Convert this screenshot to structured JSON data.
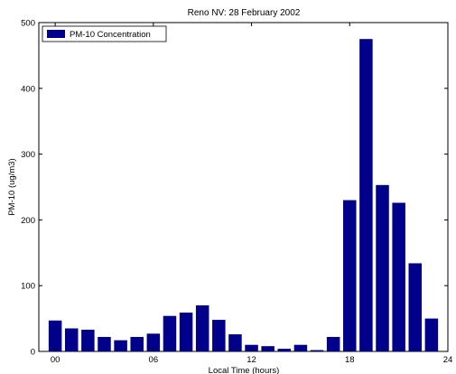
{
  "chart_data": {
    "type": "bar",
    "title": "Reno NV: 28 February 2002",
    "xlabel": "Local Time (hours)",
    "ylabel": "PM-10 (ug/m3)",
    "xlim": [
      -1,
      24
    ],
    "ylim": [
      0,
      500
    ],
    "xticks": [
      0,
      6,
      12,
      18,
      24
    ],
    "xtick_labels": [
      "00",
      "06",
      "12",
      "18",
      "24"
    ],
    "yticks": [
      0,
      100,
      200,
      300,
      400,
      500
    ],
    "legend_position": "top-left",
    "grid": false,
    "bar_color": "#00008b",
    "series": [
      {
        "name": "PM-10 Concentration",
        "x": [
          0,
          1,
          2,
          3,
          4,
          5,
          6,
          7,
          8,
          9,
          10,
          11,
          12,
          13,
          14,
          15,
          16,
          17,
          18,
          19,
          20,
          21,
          22,
          23
        ],
        "values": [
          47,
          35,
          33,
          22,
          17,
          22,
          27,
          54,
          59,
          70,
          48,
          26,
          10,
          8,
          4,
          10,
          2,
          22,
          230,
          475,
          253,
          226,
          134,
          50
        ]
      }
    ]
  }
}
